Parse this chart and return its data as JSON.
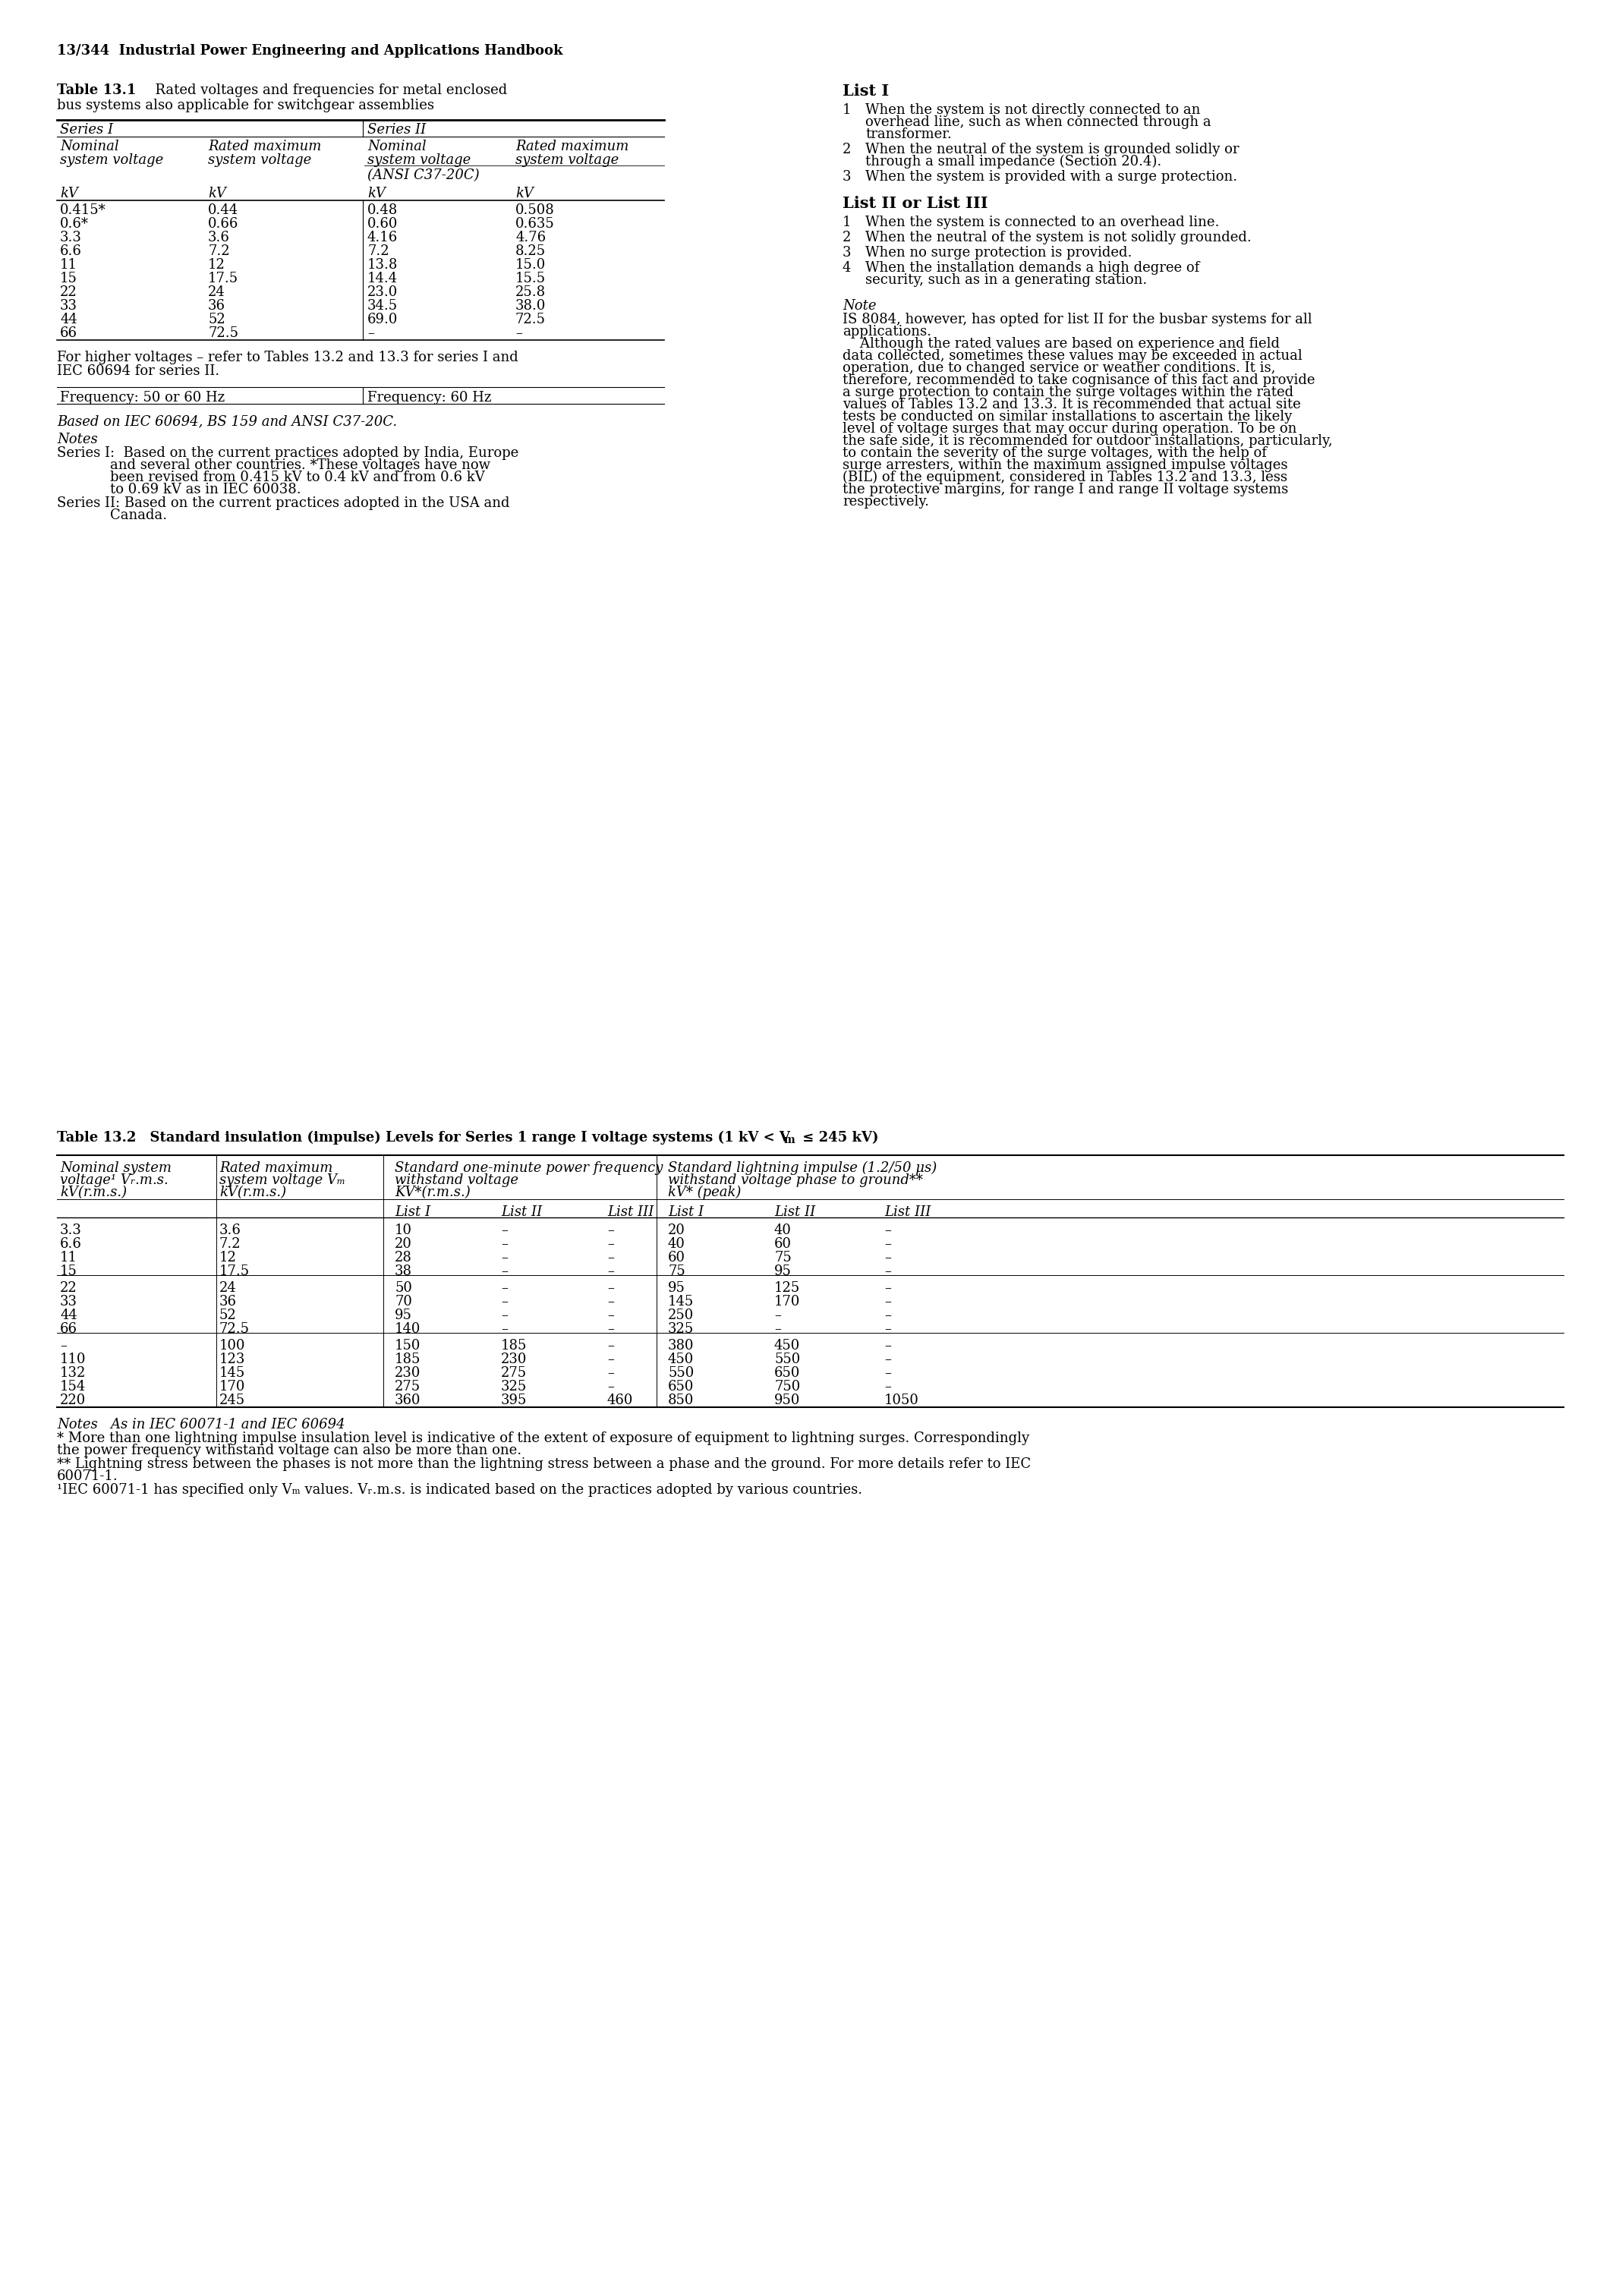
{
  "page_header": "13/344  Industrial Power Engineering and Applications Handbook",
  "table1_title_bold": "Table 13.1",
  "table1_title_rest": "  Rated voltages and frequencies for metal enclosed",
  "table1_title_line2": "bus systems also applicable for switchgear assemblies",
  "table1_data": [
    [
      "0.415*",
      "0.44",
      "0.48",
      "0.508"
    ],
    [
      "0.6*",
      "0.66",
      "0.60",
      "0.635"
    ],
    [
      "3.3",
      "3.6",
      "4.16",
      "4.76"
    ],
    [
      "6.6",
      "7.2",
      "7.2",
      "8.25"
    ],
    [
      "11",
      "12",
      "13.8",
      "15.0"
    ],
    [
      "15",
      "17.5",
      "14.4",
      "15.5"
    ],
    [
      "22",
      "24",
      "23.0",
      "25.8"
    ],
    [
      "33",
      "36",
      "34.5",
      "38.0"
    ],
    [
      "44",
      "52",
      "69.0",
      "72.5"
    ],
    [
      "66",
      "72.5",
      "–",
      "–"
    ]
  ],
  "table1_freq1": "Frequency: 50 or 60 Hz",
  "table1_freq2": "Frequency: 60 Hz",
  "table1_based": "Based on IEC 60694, BS 159 and ANSI C37-20C.",
  "list1_title": "List I",
  "list1": [
    [
      "When the system is not directly connected to an",
      "overhead line, such as when connected through a",
      "transformer."
    ],
    [
      "When the neutral of the system is grounded solidly or",
      "through a small impedance (Section 20.4)."
    ],
    [
      "When the system is provided with a surge protection."
    ]
  ],
  "list23_title": "List II or List III",
  "list23": [
    [
      "When the system is connected to an overhead line."
    ],
    [
      "When the neutral of the system is not solidly grounded."
    ],
    [
      "When no surge protection is provided."
    ],
    [
      "When the installation demands a high degree of",
      "security, such as in a generating station."
    ]
  ],
  "note_title": "Note",
  "note_lines": [
    "IS 8084, however, has opted for list II for the busbar systems for all",
    "applications.",
    "    Although the rated values are based on experience and field",
    "data collected, sometimes these values may be exceeded in actual",
    "operation, due to changed service or weather conditions. It is,",
    "therefore, recommended to take cognisance of this fact and provide",
    "a surge protection to contain the surge voltages within the rated",
    "values of Tables 13.2 and 13.3. It is recommended that actual site",
    "tests be conducted on similar installations to ascertain the likely",
    "level of voltage surges that may occur during operation. To be on",
    "the safe side, it is recommended for outdoor installations, particularly,",
    "to contain the severity of the surge voltages, with the help of",
    "surge arresters, within the maximum assigned impulse voltages",
    "(BIL) of the equipment, considered in Tables 13.2 and 13.3, less",
    "the protective margins, for range I and range II voltage systems",
    "respectively."
  ],
  "t13_notes_lines": [
    "Notes",
    "Series I:  Based on the current practices adopted by India, Europe",
    "         and several other countries. *These voltages have now",
    "         been revised from 0.415 kV to 0.4 kV and from 0.6 kV",
    "         to 0.69 kV as in IEC 60038.",
    "Series II: Based on the current practices adopted in the USA and",
    "         Canada."
  ],
  "table2_title": "Table 13.2",
  "table2_title_rest": "  Standard insulation (impulse) Levels for Series 1 range I voltage systems (1 kV < V",
  "table2_title_sub": "m",
  "table2_title_end": " ≤ 245 kV)",
  "table2_data": [
    [
      "3.3",
      "3.6",
      "10",
      "–",
      "–",
      "20",
      "40",
      "–"
    ],
    [
      "6.6",
      "7.2",
      "20",
      "–",
      "–",
      "40",
      "60",
      "–"
    ],
    [
      "11",
      "12",
      "28",
      "–",
      "–",
      "60",
      "75",
      "–"
    ],
    [
      "15",
      "17.5",
      "38",
      "–",
      "–",
      "75",
      "95",
      "–"
    ],
    [
      "22",
      "24",
      "50",
      "–",
      "–",
      "95",
      "125",
      "–"
    ],
    [
      "33",
      "36",
      "70",
      "–",
      "–",
      "145",
      "170",
      "–"
    ],
    [
      "44",
      "52",
      "95",
      "–",
      "–",
      "250",
      "–",
      "–"
    ],
    [
      "66",
      "72.5",
      "140",
      "–",
      "–",
      "325",
      "–",
      "–"
    ],
    [
      "–",
      "100",
      "150",
      "185",
      "–",
      "380",
      "450",
      "–"
    ],
    [
      "110",
      "123",
      "185",
      "230",
      "–",
      "450",
      "550",
      "–"
    ],
    [
      "132",
      "145",
      "230",
      "275",
      "–",
      "550",
      "650",
      "–"
    ],
    [
      "154",
      "170",
      "275",
      "325",
      "–",
      "650",
      "750",
      "–"
    ],
    [
      "220",
      "245",
      "360",
      "395",
      "460",
      "850",
      "950",
      "1050"
    ]
  ],
  "table2_note_lines": [
    "Notes   As in IEC 60071-1 and IEC 60694",
    "* More than one lightning impulse insulation level is indicative of the extent of exposure of equipment to lightning surges. Correspondingly",
    "the power frequency withstand voltage can also be more than one.",
    "** Lightning stress between the phases is not more than the lightning stress between a phase and the ground. For more details refer to IEC",
    "60071-1.",
    "¹IEC 60071-1 has specified only Vₘ values. Vᵣ.m.s. is indicated based on the practices adopted by various countries."
  ],
  "bg_color": "#ffffff"
}
